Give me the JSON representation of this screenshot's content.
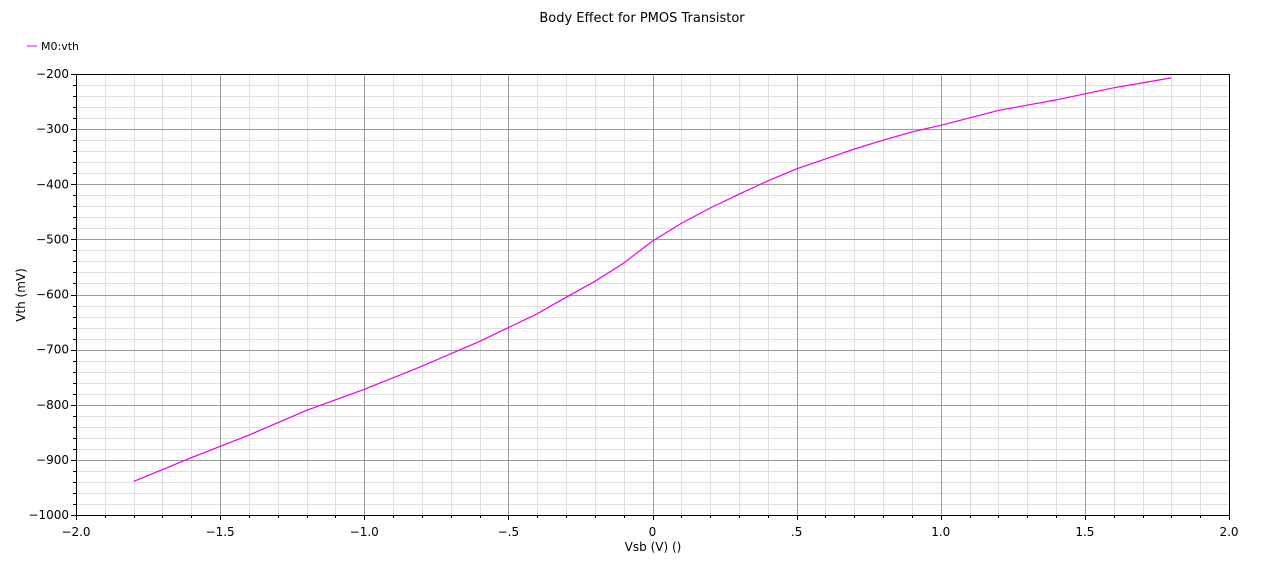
{
  "chart_data": {
    "type": "line",
    "title": "Body Effect for PMOS Transistor",
    "xlabel": "Vsb (V) ()",
    "ylabel": "Vth (mV)",
    "xlim": [
      -2.0,
      2.0
    ],
    "ylim": [
      -1000,
      -200
    ],
    "grid": true,
    "legend_position": "top-left",
    "x_ticks": [
      -2.0,
      -1.5,
      -1.0,
      -0.5,
      0,
      0.5,
      1.0,
      1.5,
      2.0
    ],
    "x_tick_labels": [
      "-2.0",
      "-1.5",
      "-1.0",
      "-.5",
      "0",
      ".5",
      "1.0",
      "1.5",
      "2.0"
    ],
    "y_ticks": [
      -200,
      -300,
      -400,
      -500,
      -600,
      -700,
      -800,
      -900,
      -1000
    ],
    "y_tick_labels": [
      "-200",
      "-300",
      "-400",
      "-500",
      "-600",
      "-700",
      "-800",
      "-900",
      "-1000"
    ],
    "series": [
      {
        "name": "M0:vth",
        "color": "#ee00ee",
        "x": [
          -1.8,
          -1.6,
          -1.4,
          -1.2,
          -1.0,
          -0.8,
          -0.6,
          -0.4,
          -0.3,
          -0.2,
          -0.1,
          0.0,
          0.1,
          0.2,
          0.3,
          0.4,
          0.5,
          0.6,
          0.7,
          0.8,
          0.9,
          1.0,
          1.2,
          1.4,
          1.6,
          1.8
        ],
        "values": [
          -939,
          -896,
          -855,
          -810,
          -772,
          -730,
          -685,
          -635,
          -605,
          -576,
          -543,
          -503,
          -471,
          -443,
          -418,
          -394,
          -372,
          -354,
          -336,
          -320,
          -305,
          -293,
          -266,
          -247,
          -225,
          -207
        ]
      }
    ]
  }
}
